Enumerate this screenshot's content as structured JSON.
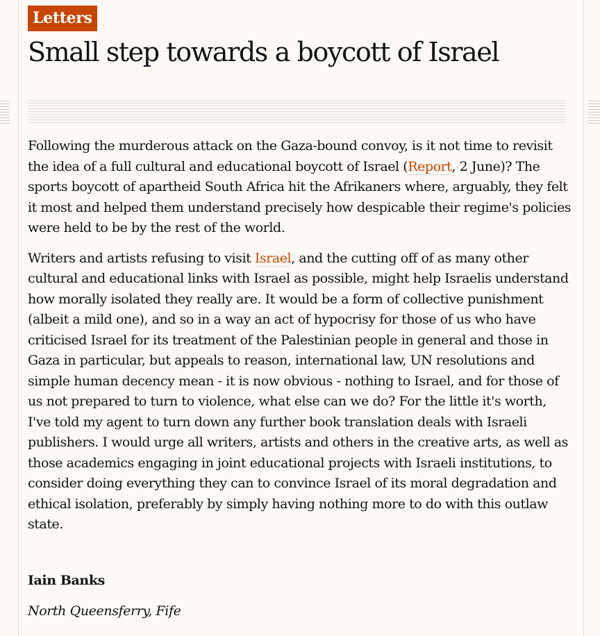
{
  "section": {
    "kicker": "Letters"
  },
  "headline": "Small step towards a boycott of Israel",
  "body": {
    "p1": {
      "before_link": "Following the murderous attack on the Gaza-bound convoy, is it not time to revisit the idea of a full cultural and educational boycott of Israel (",
      "link": "Report",
      "after_link": ", 2 June)? The sports boycott of apartheid South Africa hit the Afrikaners where, arguably, they felt it most and helped them understand precisely how despicable their regime's policies were held to be by the rest of the world."
    },
    "p2": {
      "before_link": "Writers and artists refusing to visit ",
      "link": "Israel",
      "after_link": ", and the cutting off of as many other cultural and educational links with Israel as possible, might help Israelis understand how morally isolated they really are. It would be a form of collective punishment (albeit a mild one), and so in a way an act of hypocrisy for those of us who have criticised Israel for its treatment of the Palestinian people in general and those in Gaza in particular, but appeals to reason, international law, UN resolutions and simple human decency mean - it is now obvious - nothing to Israel, and for those of us not prepared to turn to violence, what else can we do? For the little it's worth, I've told my agent to turn down any further book translation deals with Israeli publishers. I would urge all writers, artists and others in the creative arts, as well as those academics engaging in joint educational projects with Israeli institutions, to consider doing everything they can to convince Israel of its moral degradation and ethical isolation, preferably by simply having nothing more to do with this outlaw state."
    }
  },
  "signature": {
    "author": "Iain Banks",
    "location": "North Queensferry, Fife"
  },
  "colors": {
    "accent": "#c74600",
    "background": "#fdf9f4",
    "text": "#121212"
  }
}
